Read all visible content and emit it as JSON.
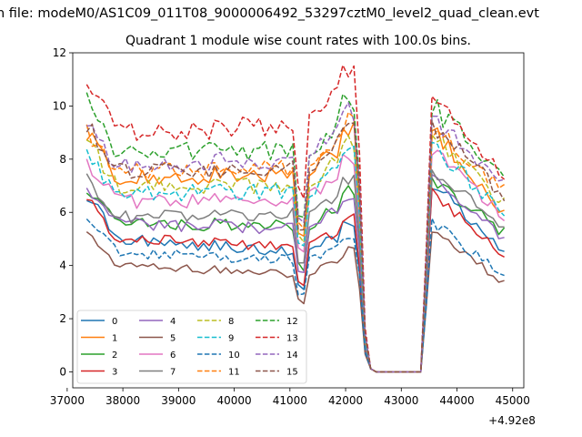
{
  "figure": {
    "suptitle": "n file: modeM0/AS1C09_011T08_9000006492_53297cztM0_level2_quad_clean.evt",
    "offset_label": "+4.92e8"
  },
  "colors": [
    "#1f77b4",
    "#ff7f0e",
    "#2ca02c",
    "#d62728",
    "#9467bd",
    "#8c564b",
    "#e377c2",
    "#7f7f7f",
    "#bcbd22",
    "#17becf",
    "#1f77b4",
    "#ff7f0e",
    "#2ca02c",
    "#d62728",
    "#9467bd",
    "#8c564b"
  ],
  "chart_data": {
    "type": "line",
    "title": "Quadrant 1 module wise count rates with 100.0s bins.",
    "xlabel": "",
    "ylabel": "",
    "x_offset": 492000000,
    "xlim": [
      37100,
      45200
    ],
    "ylim": [
      -0.6,
      12
    ],
    "xticks": [
      37000,
      38000,
      39000,
      40000,
      41000,
      42000,
      43000,
      44000,
      45000
    ],
    "xtick_labels": [
      "37000",
      "38000",
      "39000",
      "40000",
      "41000",
      "42000",
      "43000",
      "44000",
      "45000"
    ],
    "yticks": [
      0,
      2,
      4,
      6,
      8,
      10,
      12
    ],
    "ytick_labels": [
      "0",
      "2",
      "4",
      "6",
      "8",
      "10",
      "12"
    ],
    "grid": false,
    "legend_loc": "lower left",
    "legend_ncol": 4,
    "bin_s": 100,
    "x_start": 37350,
    "x_step": 100,
    "n_points": 76,
    "series": [
      {
        "name": "0",
        "linestyle": "solid",
        "start": 6.7,
        "knee": 5.0,
        "pre": 4.5,
        "post_start": 7.1,
        "post_end": 4.6
      },
      {
        "name": "1",
        "linestyle": "solid",
        "start": 9.0,
        "knee": 7.3,
        "pre": 7.4,
        "post_start": 9.2,
        "post_end": 6.0
      },
      {
        "name": "2",
        "linestyle": "solid",
        "start": 6.9,
        "knee": 5.6,
        "pre": 5.5,
        "post_start": 7.3,
        "post_end": 5.2
      },
      {
        "name": "3",
        "linestyle": "solid",
        "start": 6.6,
        "knee": 5.0,
        "pre": 4.7,
        "post_start": 6.8,
        "post_end": 4.4
      },
      {
        "name": "4",
        "linestyle": "solid",
        "start": 7.0,
        "knee": 5.6,
        "pre": 5.4,
        "post_start": 7.2,
        "post_end": 5.0
      },
      {
        "name": "5",
        "linestyle": "solid",
        "start": 5.3,
        "knee": 4.0,
        "pre": 3.7,
        "post_start": 5.5,
        "post_end": 3.3
      },
      {
        "name": "6",
        "linestyle": "solid",
        "start": 8.0,
        "knee": 6.4,
        "pre": 6.5,
        "post_start": 8.4,
        "post_end": 5.8
      },
      {
        "name": "7",
        "linestyle": "solid",
        "start": 7.4,
        "knee": 5.8,
        "pre": 5.9,
        "post_start": 7.7,
        "post_end": 5.4
      },
      {
        "name": "8",
        "linestyle": "dashed",
        "start": 8.6,
        "knee": 7.0,
        "pre": 7.0,
        "post_start": 8.9,
        "post_end": 6.3
      },
      {
        "name": "9",
        "linestyle": "dashed",
        "start": 8.2,
        "knee": 6.7,
        "pre": 6.8,
        "post_start": 8.5,
        "post_end": 6.0
      },
      {
        "name": "10",
        "linestyle": "dashed",
        "start": 5.6,
        "knee": 4.5,
        "pre": 4.2,
        "post_start": 5.6,
        "post_end": 3.6
      },
      {
        "name": "11",
        "linestyle": "dashed",
        "start": 9.0,
        "knee": 7.5,
        "pre": 7.7,
        "post_start": 9.2,
        "post_end": 6.8
      },
      {
        "name": "12",
        "linestyle": "dashed",
        "start": 10.1,
        "knee": 8.3,
        "pre": 8.3,
        "post_start": 10.0,
        "post_end": 7.5
      },
      {
        "name": "13",
        "linestyle": "dashed",
        "start": 11.3,
        "knee": 9.0,
        "pre": 9.3,
        "post_start": 10.5,
        "post_end": 7.2
      },
      {
        "name": "14",
        "linestyle": "dashed",
        "start": 9.6,
        "knee": 7.8,
        "pre": 8.0,
        "post_start": 9.6,
        "post_end": 7.0
      },
      {
        "name": "15",
        "linestyle": "dashed",
        "start": 9.3,
        "knee": 7.5,
        "pre": 7.6,
        "post_start": 9.3,
        "post_end": 6.6
      }
    ]
  }
}
